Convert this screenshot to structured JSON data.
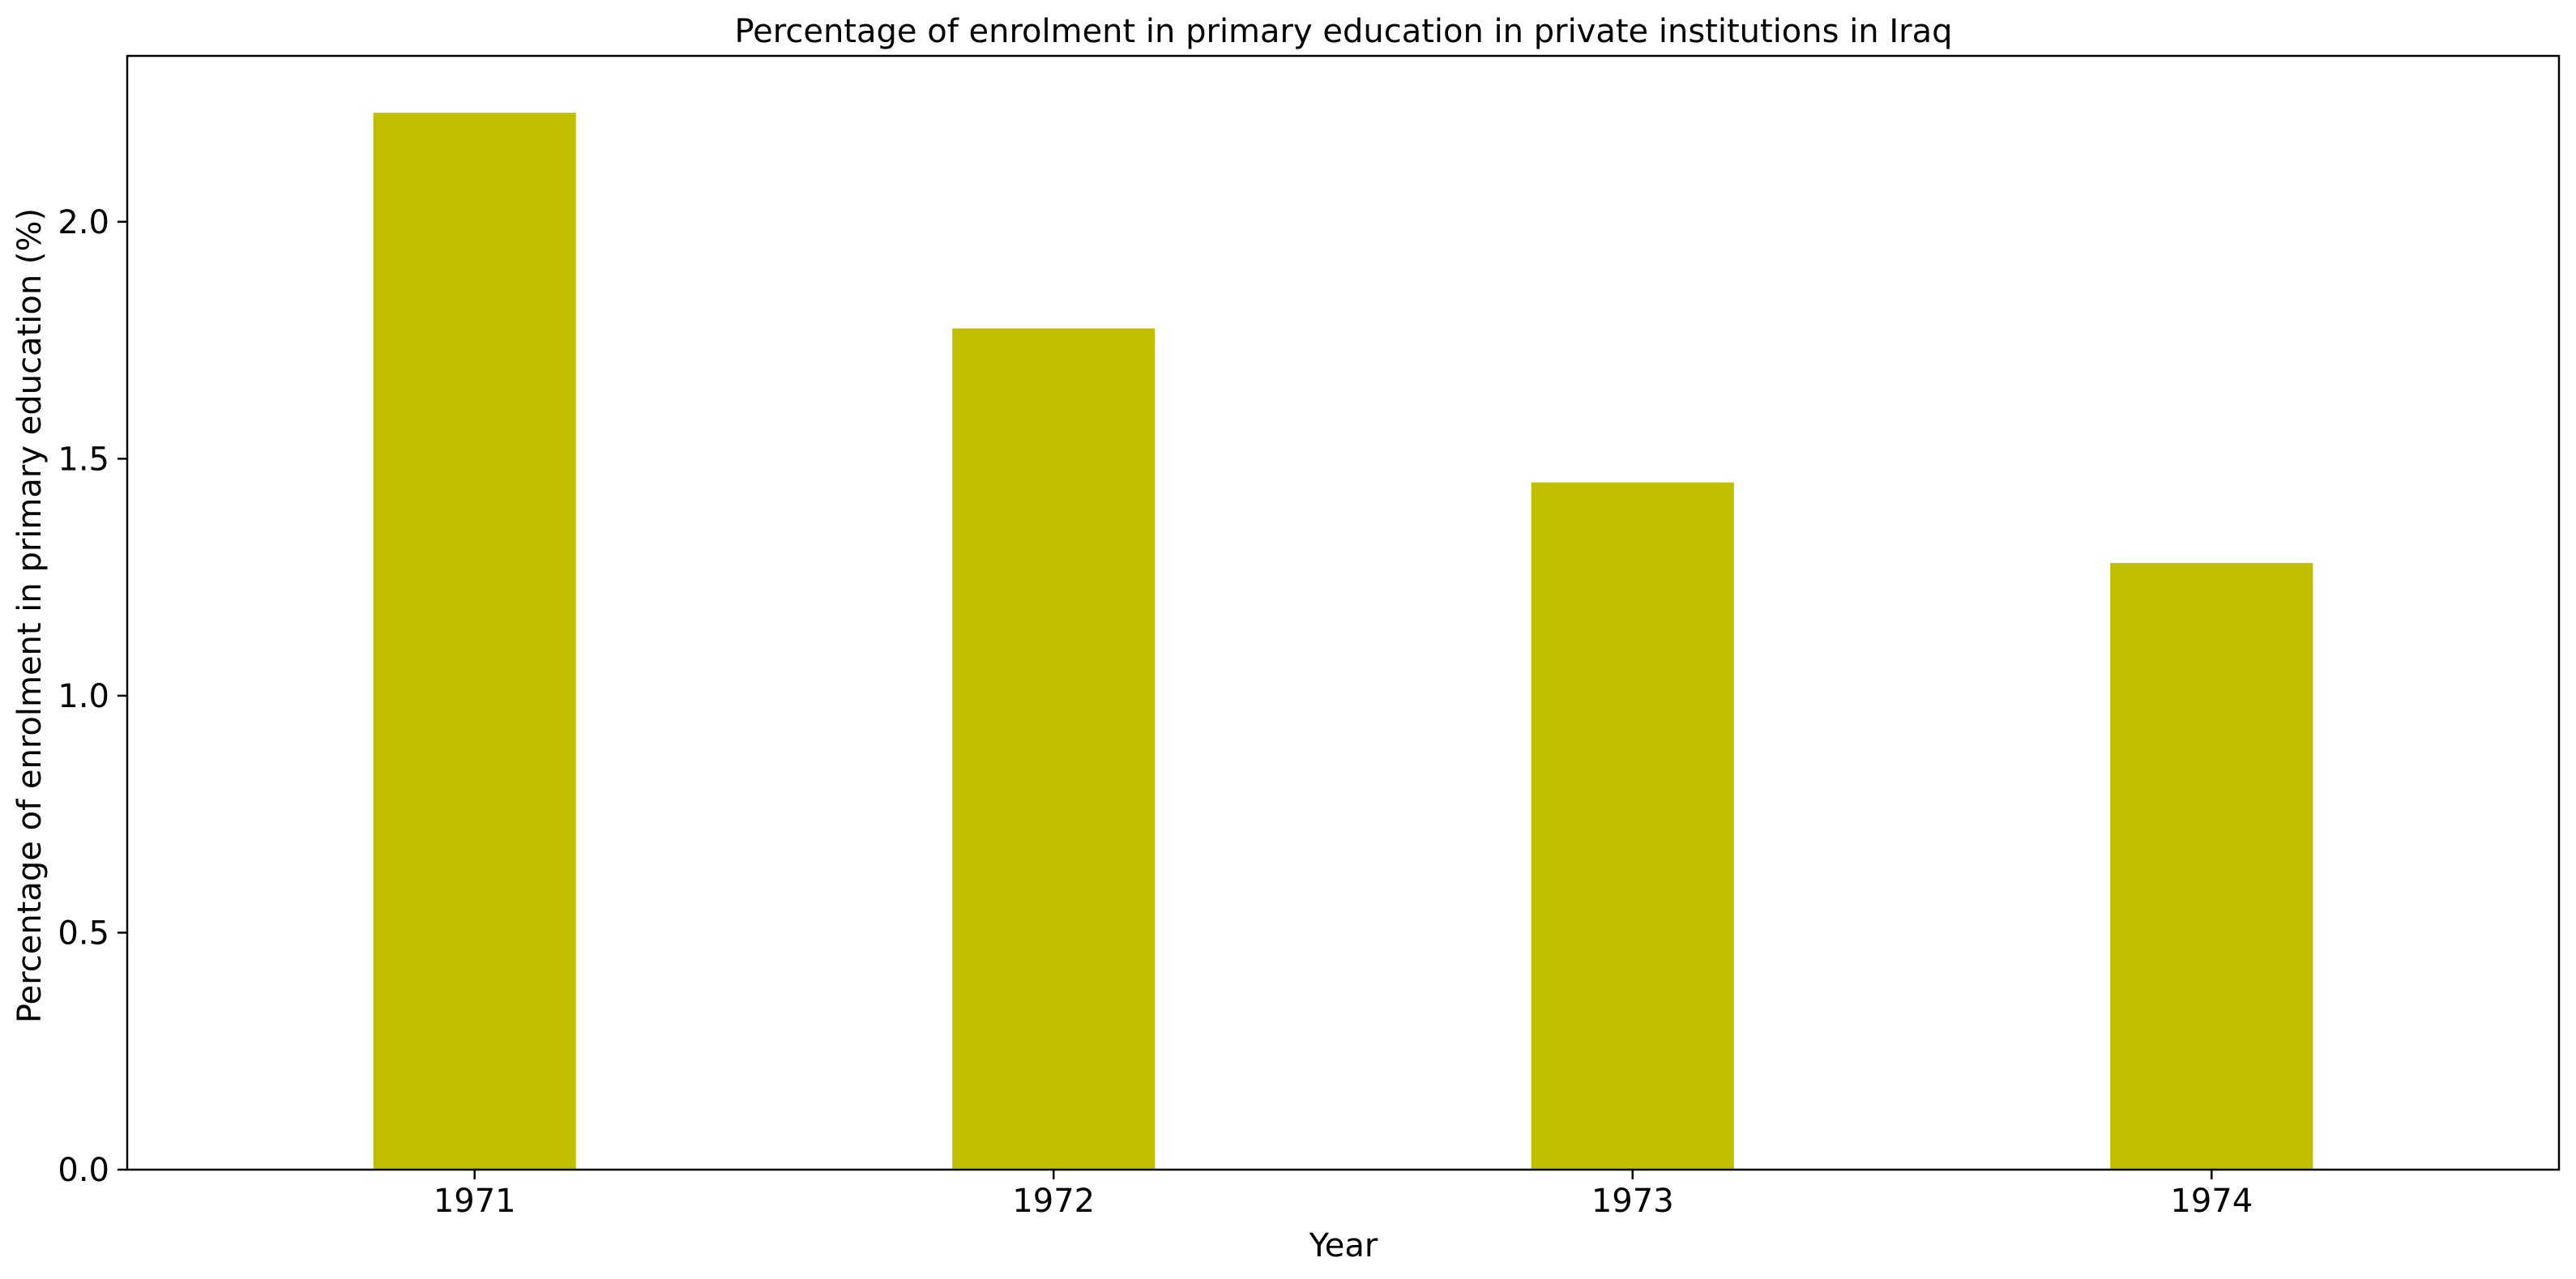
{
  "chart_data": {
    "type": "bar",
    "title": "Percentage of enrolment in primary education in private institutions in Iraq",
    "xlabel": "Year",
    "ylabel": "Percentage of enrolment in primary education (%)",
    "categories": [
      "1971",
      "1972",
      "1973",
      "1974"
    ],
    "values": [
      2.23,
      1.775,
      1.45,
      1.28
    ],
    "ylim": [
      0,
      2.35
    ],
    "yticks": [
      0.0,
      0.5,
      1.0,
      1.5,
      2.0
    ],
    "ytick_labels": [
      "0.0",
      "0.5",
      "1.0",
      "1.5",
      "2.0"
    ],
    "bar_color": "#bfbf00",
    "grid": false,
    "legend": "none"
  }
}
